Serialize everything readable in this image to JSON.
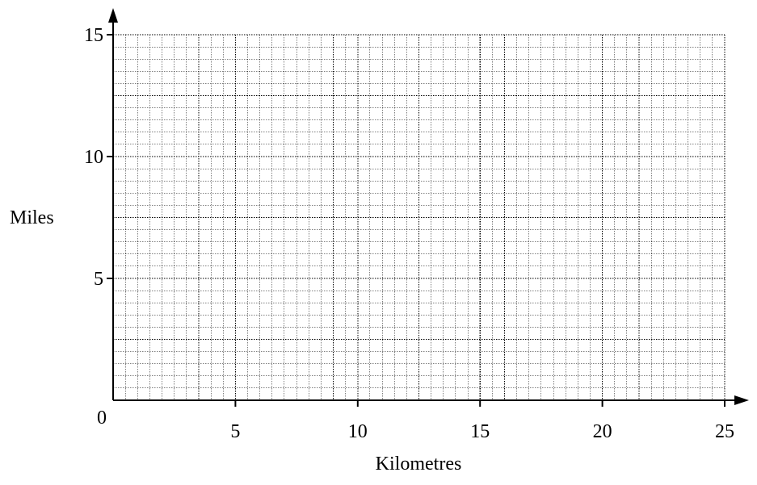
{
  "chart_data": {
    "type": "line",
    "title": "",
    "xlabel": "Kilometres",
    "ylabel": "Miles",
    "origin_label": "0",
    "xlim": [
      0,
      25
    ],
    "ylim": [
      0,
      15
    ],
    "x_ticks": [
      5,
      10,
      15,
      20,
      25
    ],
    "y_ticks": [
      5,
      10,
      15
    ],
    "x_minor_step": 0.5,
    "y_minor_step": 0.5,
    "grid": true,
    "grid_style": "dotted",
    "series": []
  }
}
